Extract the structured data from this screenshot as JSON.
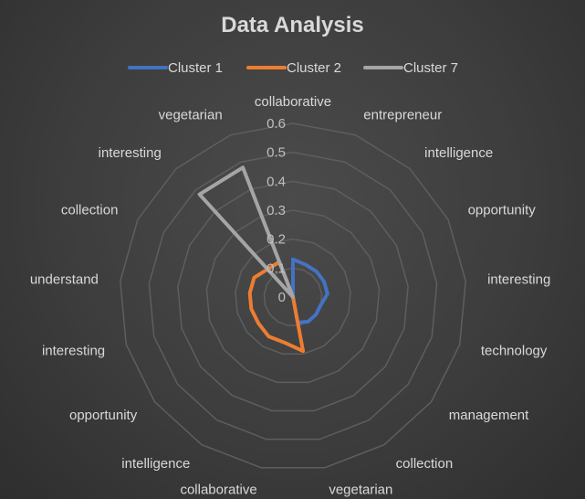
{
  "chart_data": {
    "type": "radar",
    "title": "Data Analysis",
    "categories": [
      "collaborative",
      "entrepreneur",
      "intelligence",
      "opportunity",
      "interesting",
      "technology",
      "management",
      "collection",
      "vegetarian",
      "collaborative",
      "intelligence",
      "opportunity",
      "interesting",
      "understand",
      "collection",
      "interesting",
      "vegetarian"
    ],
    "radial_ticks": [
      "0",
      "0.1",
      "0.2",
      "0.3",
      "0.4",
      "0.5",
      "0.6"
    ],
    "rmax": 0.6,
    "rmin": 0,
    "legend_position": "top",
    "series": [
      {
        "name": "Cluster 1",
        "color": "#4472c4",
        "values": [
          0.13,
          0.12,
          0.12,
          0.12,
          0.12,
          0.1,
          0.1,
          0.1,
          0.09,
          0,
          0,
          0,
          0,
          0,
          0,
          0,
          0
        ]
      },
      {
        "name": "Cluster 2",
        "color": "#ed7d31",
        "values": [
          0,
          0,
          0,
          0,
          0,
          0,
          0,
          0,
          0.19,
          0.16,
          0.16,
          0.15,
          0.15,
          0.15,
          0.15,
          0.13,
          0.13
        ]
      },
      {
        "name": "Cluster 7",
        "color": "#a5a5a5",
        "values": [
          0,
          0,
          0,
          0,
          0,
          0,
          0,
          0,
          0,
          0,
          0,
          0,
          0,
          0,
          0,
          0.48,
          0.48
        ]
      }
    ]
  }
}
